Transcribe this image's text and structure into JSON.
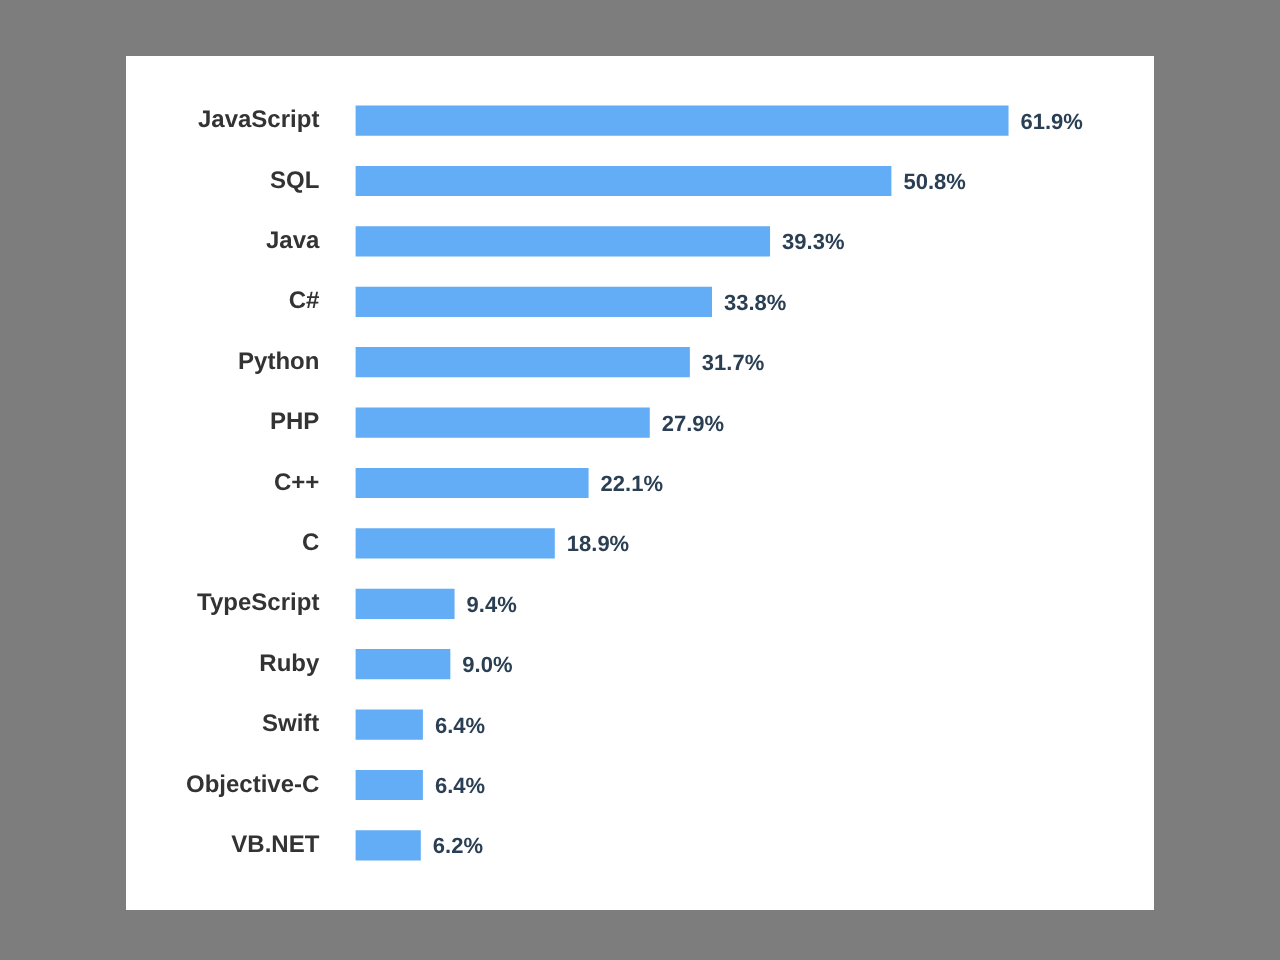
{
  "chart_data": {
    "type": "bar",
    "orientation": "horizontal",
    "categories": [
      "JavaScript",
      "SQL",
      "Java",
      "C#",
      "Python",
      "PHP",
      "C++",
      "C",
      "TypeScript",
      "Ruby",
      "Swift",
      "Objective-C",
      "VB.NET"
    ],
    "values": [
      61.9,
      50.8,
      39.3,
      33.8,
      31.7,
      27.9,
      22.1,
      18.9,
      9.4,
      9.0,
      6.4,
      6.4,
      6.2
    ],
    "value_labels": [
      "61.9%",
      "50.8%",
      "39.3%",
      "33.8%",
      "31.7%",
      "27.9%",
      "22.1%",
      "18.9%",
      "9.4%",
      "9.0%",
      "6.4%",
      "6.4%",
      "6.2%"
    ],
    "color": "#62adf5",
    "legend": false
  }
}
